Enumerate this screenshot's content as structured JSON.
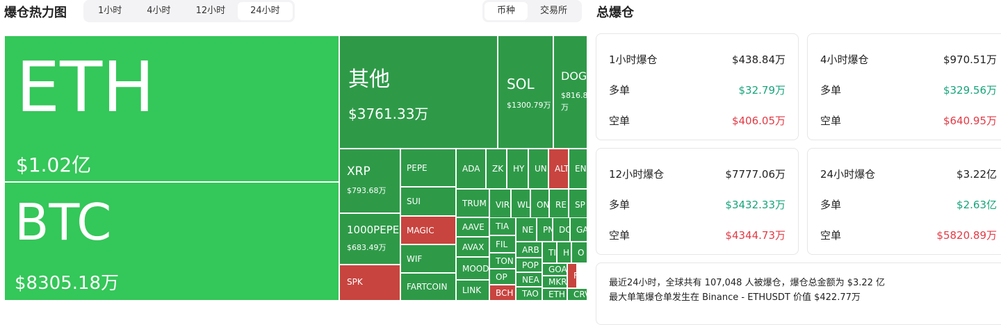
{
  "header": {
    "title": "爆仓热力图",
    "time_tabs": [
      "1小时",
      "4小时",
      "12小时",
      "24小时"
    ],
    "active_time_tab": 3,
    "view_tabs": [
      "币种",
      "交易所"
    ],
    "active_view_tab": 0
  },
  "treemap": {
    "tiles": [
      {
        "label": "ETH",
        "value": "$1.02亿",
        "color": "#34c759"
      },
      {
        "label": "BTC",
        "value": "$8305.18万",
        "color": "#34c759"
      },
      {
        "label": "其他",
        "value": "$3761.33万",
        "color": "#2e9a48"
      },
      {
        "label": "SOL",
        "value": "$1300.79万",
        "color": "#2e9a48"
      },
      {
        "label": "DOG",
        "value": "$816.8万",
        "color": "#2e9a48"
      },
      {
        "label": "XRP",
        "value": "$793.68万",
        "color": "#2e9a48"
      },
      {
        "label": "1000PEPE",
        "value": "$683.49万",
        "color": "#2e9a48"
      },
      {
        "label": "SPK",
        "color": "#c8443f"
      },
      {
        "label": "PEPE",
        "color": "#2e9a48"
      },
      {
        "label": "SUI",
        "color": "#2e9a48"
      },
      {
        "label": "MAGIC",
        "color": "#c8443f"
      },
      {
        "label": "WIF",
        "color": "#2e9a48"
      },
      {
        "label": "FARTCOIN",
        "color": "#2e9a48"
      },
      {
        "label": "ADA",
        "color": "#2e9a48"
      },
      {
        "label": "ZK",
        "color": "#2e9a48"
      },
      {
        "label": "HY",
        "color": "#2e9a48"
      },
      {
        "label": "UN",
        "color": "#2e9a48"
      },
      {
        "label": "ALT",
        "color": "#c8443f"
      },
      {
        "label": "EN",
        "color": "#2e9a48"
      },
      {
        "label": "TRUM",
        "color": "#2e9a48"
      },
      {
        "label": "VIR",
        "color": "#2e9a48"
      },
      {
        "label": "WL",
        "color": "#2e9a48"
      },
      {
        "label": "ON",
        "color": "#2e9a48"
      },
      {
        "label": "RE",
        "color": "#2e9a48"
      },
      {
        "label": "SP",
        "color": "#2e9a48"
      },
      {
        "label": "AAVE",
        "color": "#2e9a48"
      },
      {
        "label": "AVAX",
        "color": "#2e9a48"
      },
      {
        "label": "MOOD",
        "color": "#2e9a48"
      },
      {
        "label": "LINK",
        "color": "#2e9a48"
      },
      {
        "label": "TIA",
        "color": "#2e9a48"
      },
      {
        "label": "FIL",
        "color": "#2e9a48"
      },
      {
        "label": "TON",
        "color": "#2e9a48"
      },
      {
        "label": "OP",
        "color": "#2e9a48"
      },
      {
        "label": "BCH",
        "color": "#c8443f"
      },
      {
        "label": "NE",
        "color": "#2e9a48"
      },
      {
        "label": "PN",
        "color": "#2e9a48"
      },
      {
        "label": "DC",
        "color": "#2e9a48"
      },
      {
        "label": "GA",
        "color": "#2e9a48"
      },
      {
        "label": "ARB",
        "color": "#2e9a48"
      },
      {
        "label": "POP",
        "color": "#2e9a48"
      },
      {
        "label": "NEA",
        "color": "#2e9a48"
      },
      {
        "label": "TAO",
        "color": "#2e9a48"
      },
      {
        "label": "TI",
        "color": "#2e9a48"
      },
      {
        "label": "H",
        "color": "#2e9a48"
      },
      {
        "label": "O",
        "color": "#2e9a48"
      },
      {
        "label": "GOA",
        "color": "#2e9a48"
      },
      {
        "label": "MKR",
        "color": "#2e9a48"
      },
      {
        "label": "ETH",
        "color": "#2e9a48"
      },
      {
        "label": "F",
        "color": "#c8443f"
      },
      {
        "label": "CRV",
        "color": "#2e9a48"
      }
    ]
  },
  "summary": {
    "title": "总爆仓",
    "cards": [
      {
        "title": "1小时爆仓",
        "total": "$438.84万",
        "rows": [
          {
            "label": "多单",
            "value": "$32.79万"
          },
          {
            "label": "空单",
            "value": "$406.05万"
          }
        ]
      },
      {
        "title": "4小时爆仓",
        "total": "$970.51万",
        "rows": [
          {
            "label": "多单",
            "value": "$329.56万"
          },
          {
            "label": "空单",
            "value": "$640.95万"
          }
        ]
      },
      {
        "title": "12小时爆仓",
        "total": "$7777.06万",
        "rows": [
          {
            "label": "多单",
            "value": "$3432.33万"
          },
          {
            "label": "空单",
            "value": "$4344.73万"
          }
        ]
      },
      {
        "title": "24小时爆仓",
        "total": "$3.22亿",
        "rows": [
          {
            "label": "多单",
            "value": "$2.63亿"
          },
          {
            "label": "空单",
            "value": "$5820.89万"
          }
        ]
      }
    ],
    "note": [
      "最近24小时，全球共有 107,048 人被爆仓，爆仓总金额为 $3.22 亿",
      "最大单笔爆仓单发生在 Binance - ETHUSDT 价值 $422.77万"
    ]
  }
}
